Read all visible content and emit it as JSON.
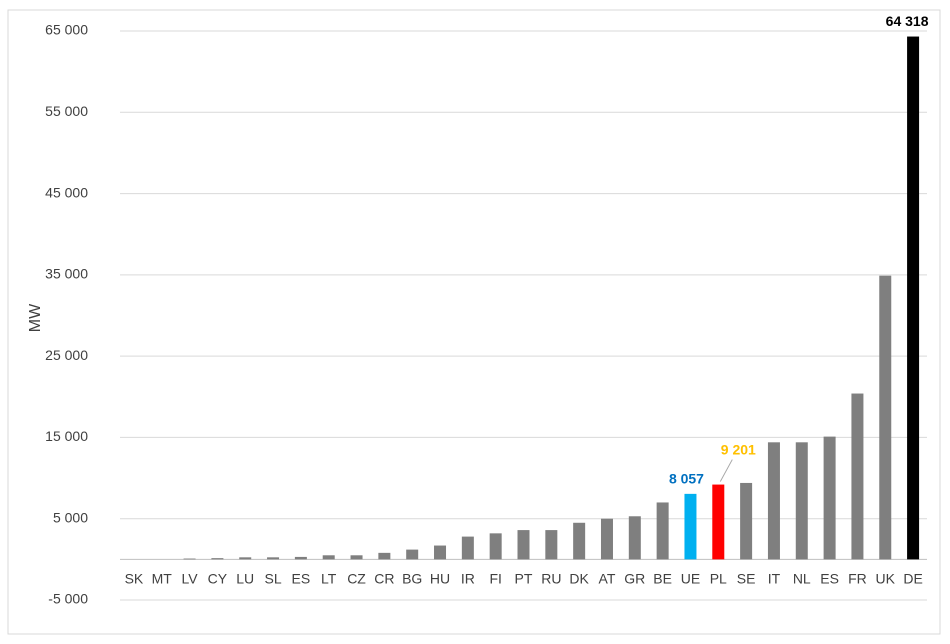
{
  "chart_data": {
    "type": "bar",
    "y_label": "MW",
    "categories": [
      "SK",
      "MT",
      "LV",
      "CY",
      "LU",
      "SL",
      "ES",
      "LT",
      "CZ",
      "CR",
      "BG",
      "HU",
      "IR",
      "FI",
      "PT",
      "RU",
      "DK",
      "AT",
      "GR",
      "BE",
      "UE",
      "PL",
      "SE",
      "IT",
      "NL",
      "ES",
      "FR",
      "UK",
      "DE"
    ],
    "values": [
      0,
      0,
      100,
      150,
      250,
      250,
      300,
      500,
      500,
      800,
      1200,
      1700,
      2800,
      3200,
      3600,
      3600,
      4500,
      5000,
      5300,
      7000,
      8057,
      9201,
      9400,
      14400,
      14400,
      15100,
      20400,
      34900,
      64318
    ],
    "value_labels": [
      null,
      null,
      null,
      null,
      null,
      null,
      null,
      null,
      null,
      null,
      null,
      null,
      null,
      null,
      null,
      null,
      null,
      null,
      null,
      null,
      "8 057",
      "9 201",
      null,
      null,
      null,
      null,
      null,
      null,
      "64 318"
    ],
    "value_label_colors": [
      null,
      null,
      null,
      null,
      null,
      null,
      null,
      null,
      null,
      null,
      null,
      null,
      null,
      null,
      null,
      null,
      null,
      null,
      null,
      null,
      "#0070c0",
      "#ffc000",
      null,
      null,
      null,
      null,
      null,
      null,
      "#000000"
    ],
    "colors": [
      "#7f7f7f",
      "#7f7f7f",
      "#7f7f7f",
      "#7f7f7f",
      "#7f7f7f",
      "#7f7f7f",
      "#7f7f7f",
      "#7f7f7f",
      "#7f7f7f",
      "#7f7f7f",
      "#7f7f7f",
      "#7f7f7f",
      "#7f7f7f",
      "#7f7f7f",
      "#7f7f7f",
      "#7f7f7f",
      "#7f7f7f",
      "#7f7f7f",
      "#7f7f7f",
      "#7f7f7f",
      "#00b0f0",
      "#ff0000",
      "#7f7f7f",
      "#7f7f7f",
      "#7f7f7f",
      "#7f7f7f",
      "#7f7f7f",
      "#7f7f7f",
      "#000000"
    ],
    "ylim": [
      -5000,
      65000
    ],
    "yticks": [
      {
        "value": -5000,
        "label": "-5 000"
      },
      {
        "value": 5000,
        "label": "5 000"
      },
      {
        "value": 15000,
        "label": "15 000"
      },
      {
        "value": 25000,
        "label": "25 000"
      },
      {
        "value": 35000,
        "label": "35 000"
      },
      {
        "value": 45000,
        "label": "45 000"
      },
      {
        "value": 55000,
        "label": "55 000"
      },
      {
        "value": 65000,
        "label": "65 000"
      }
    ],
    "grid": true
  }
}
